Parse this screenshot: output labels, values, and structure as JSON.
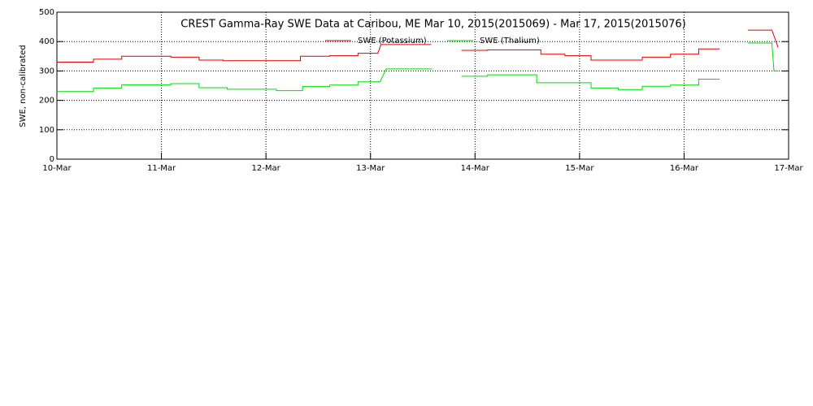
{
  "chart_data": {
    "type": "line",
    "title": "CREST Gamma-Ray SWE Data at Caribou, ME   Mar 10, 2015(2015069) - Mar 17, 2015(2015076)",
    "y_label": "SWE, non-calibrated",
    "xlim": [
      0,
      7
    ],
    "ylim": [
      0,
      500
    ],
    "xticks": [
      {
        "value": 0,
        "label": "10-Mar"
      },
      {
        "value": 1,
        "label": "11-Mar"
      },
      {
        "value": 2,
        "label": "12-Mar"
      },
      {
        "value": 3,
        "label": "13-Mar"
      },
      {
        "value": 4,
        "label": "14-Mar"
      },
      {
        "value": 5,
        "label": "15-Mar"
      },
      {
        "value": 6,
        "label": "16-Mar"
      },
      {
        "value": 7,
        "label": "17-Mar"
      }
    ],
    "yticks": [
      0,
      100,
      200,
      300,
      400,
      500
    ],
    "grid": true,
    "series": [
      {
        "name": "SWE (Potassium)",
        "color": "#dd0000",
        "x": [
          0,
          0.35,
          0.35,
          0.62,
          0.62,
          1.09,
          1.09,
          1.36,
          1.36,
          1.59,
          1.59,
          2.33,
          2.33,
          2.61,
          2.61,
          2.88,
          2.88,
          3.07,
          3.1,
          3.58,
          3.6,
          3.87,
          4.12,
          4.12,
          4.63,
          4.63,
          4.86,
          4.86,
          5.11,
          5.11,
          5.6,
          5.6,
          5.87,
          5.87,
          6.14,
          6.14,
          6.34,
          6.45,
          6.61,
          6.84,
          6.9
        ],
        "values": [
          330,
          330,
          340,
          340,
          350,
          350,
          347,
          347,
          337,
          337,
          335,
          335,
          350,
          350,
          352,
          352,
          360,
          360,
          390,
          390,
          null,
          370,
          370,
          372,
          372,
          357,
          357,
          352,
          352,
          337,
          337,
          347,
          347,
          357,
          357,
          375,
          375,
          null,
          439,
          439,
          380
        ]
      },
      {
        "name": "SWE (Thalium)",
        "color": "#00dd00",
        "x": [
          0,
          0.35,
          0.35,
          0.62,
          0.62,
          1.09,
          1.09,
          1.36,
          1.36,
          1.63,
          1.63,
          2.1,
          2.1,
          2.35,
          2.35,
          2.61,
          2.61,
          2.88,
          2.88,
          3.09,
          3.15,
          3.59,
          3.7,
          3.87,
          4.12,
          4.12,
          4.59,
          4.59,
          5.11,
          5.11,
          5.37,
          5.37,
          5.6,
          5.6,
          5.87,
          5.87,
          6.14,
          6.14,
          6.34,
          6.45,
          6.61,
          6.84,
          6.86,
          6.9
        ],
        "values": [
          230,
          230,
          242,
          242,
          253,
          253,
          257,
          257,
          243,
          243,
          238,
          238,
          233,
          233,
          247,
          247,
          252,
          252,
          263,
          263,
          307,
          307,
          null,
          282,
          282,
          287,
          287,
          260,
          260,
          242,
          242,
          237,
          237,
          248,
          248,
          252,
          252,
          272,
          272,
          null,
          395,
          395,
          300,
          300
        ]
      }
    ]
  }
}
